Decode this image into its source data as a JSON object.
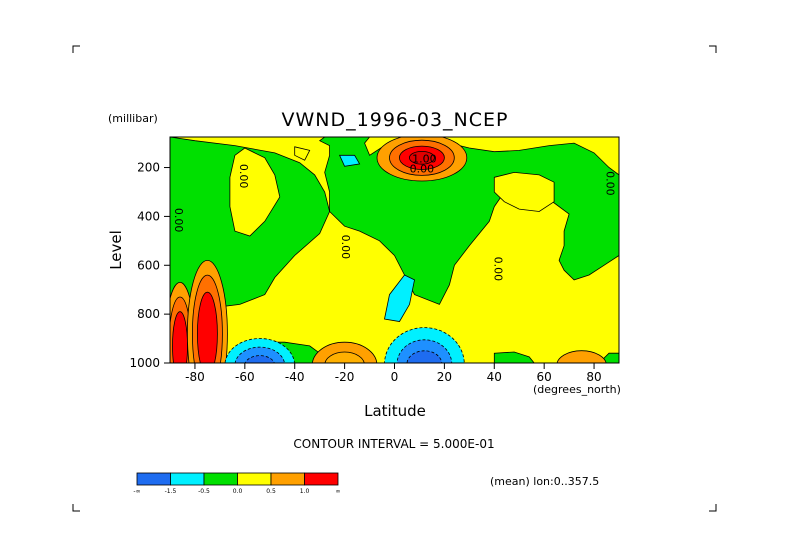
{
  "chart_data": {
    "type": "heatmap",
    "title": "VWND_1996-03_NCEP",
    "xlabel": "Latitude",
    "x_unit_label": "(degrees_north)",
    "ylabel": "Level",
    "y_unit_label": "(millibar)",
    "xlim": [
      -90,
      90
    ],
    "ylim": [
      1000,
      75
    ],
    "x_ticks": [
      -80,
      -60,
      -40,
      -20,
      0,
      20,
      40,
      60,
      80
    ],
    "y_ticks": [
      200,
      400,
      600,
      800,
      1000
    ],
    "contour_interval_text": "CONTOUR INTERVAL = 5.000E-01",
    "footnote": "(mean) lon:0..357.5",
    "colorbar": {
      "levels": [
        "-∞",
        "-1.5",
        "-0.5",
        "0.0",
        "0.5",
        "1.0",
        "∞"
      ],
      "colors": [
        "#1e6cf0",
        "#00f0ff",
        "#00e000",
        "#ffff00",
        "#ffa000",
        "#ff0000"
      ]
    },
    "contour_labels": [
      {
        "text": "0.00",
        "lat": -62,
        "level": 235
      },
      {
        "text": "0.00",
        "lat": -88,
        "level": 415
      },
      {
        "text": "0.00",
        "lat": -21,
        "level": 525
      },
      {
        "text": "1.00",
        "lat": 12,
        "level": 180
      },
      {
        "text": "0.00",
        "lat": 11,
        "level": 220
      },
      {
        "text": "0.00",
        "lat": 40,
        "level": 615
      },
      {
        "text": "0.00",
        "lat": 85,
        "level": 265
      }
    ],
    "features": [
      {
        "name": "yellow background",
        "value": 0.25
      },
      {
        "name": "green region west",
        "value": -0.25
      },
      {
        "name": "green region north-central",
        "value": -0.25
      },
      {
        "name": "green region east",
        "value": -0.25
      },
      {
        "name": "upper tropical jet max",
        "lat": 10,
        "level": 150,
        "value": 1.5
      },
      {
        "name": "southern surface max 1",
        "lat": -85,
        "level": 900,
        "value": 1.5
      },
      {
        "name": "southern surface max 2",
        "lat": -75,
        "level": 870,
        "value": 1.5
      },
      {
        "name": "surface min near -55",
        "lat": -55,
        "level": 960,
        "value": -1.5
      },
      {
        "name": "surface min near 12",
        "lat": 12,
        "level": 960,
        "value": -1.5
      },
      {
        "name": "cyan pocket lower",
        "lat": 0,
        "level": 720,
        "value": -0.75
      },
      {
        "name": "cyan pocket upper",
        "lat": -18,
        "level": 170,
        "value": -0.75
      },
      {
        "name": "orange near -20 surface",
        "lat": -20,
        "level": 980,
        "value": 0.75
      },
      {
        "name": "orange near 75 surface",
        "lat": 75,
        "level": 980,
        "value": 0.75
      }
    ]
  }
}
